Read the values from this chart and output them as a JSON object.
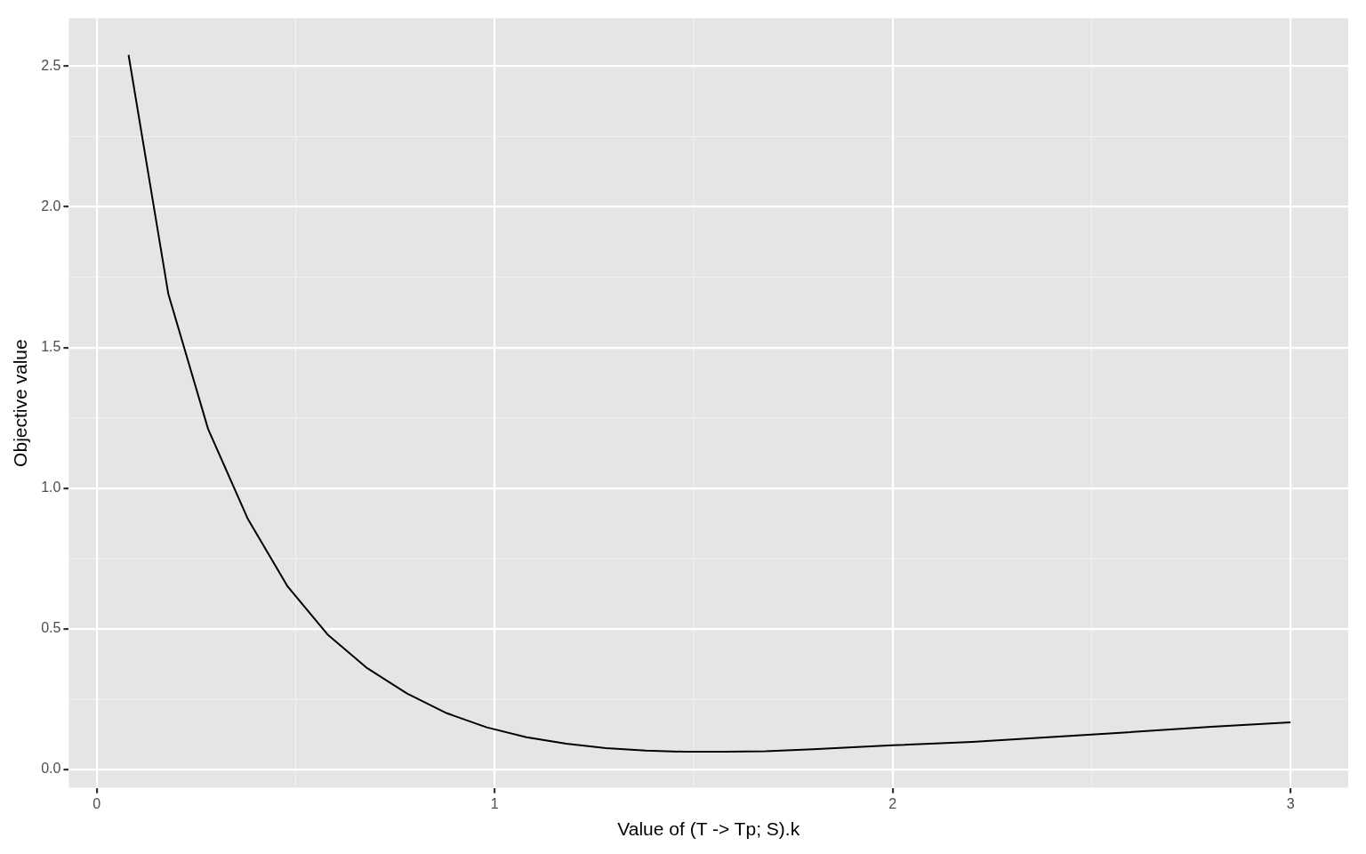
{
  "chart_data": {
    "type": "line",
    "xlabel": "Value of (T -> Tp; S).k",
    "ylabel": "Objective value",
    "x": [
      0.08,
      0.18,
      0.28,
      0.38,
      0.48,
      0.58,
      0.68,
      0.78,
      0.88,
      0.98,
      1.08,
      1.18,
      1.28,
      1.38,
      1.48,
      1.58,
      1.68,
      1.8,
      2.0,
      2.2,
      2.5,
      2.8,
      3.0
    ],
    "series": [
      {
        "color": "#000000",
        "values": [
          2.54,
          1.69,
          1.21,
          0.89,
          0.65,
          0.48,
          0.36,
          0.27,
          0.2,
          0.15,
          0.115,
          0.092,
          0.076,
          0.067,
          0.063,
          0.063,
          0.065,
          0.072,
          0.086,
          0.098,
          0.124,
          0.152,
          0.168
        ]
      }
    ],
    "xlim": [
      -0.07,
      3.145
    ],
    "ylim": [
      -0.065,
      2.67
    ],
    "xticks": [
      0,
      1,
      2,
      3
    ],
    "yticks": [
      {
        "value": 0,
        "label": "0.0"
      },
      {
        "value": 0.5,
        "label": "0.5"
      },
      {
        "value": 1,
        "label": "1.0"
      },
      {
        "value": 1.5,
        "label": "1.5"
      },
      {
        "value": 2,
        "label": "2.0"
      },
      {
        "value": 2.5,
        "label": "2.5"
      }
    ],
    "grid": true,
    "legend": false,
    "marker": "none",
    "line_style": "solid"
  }
}
